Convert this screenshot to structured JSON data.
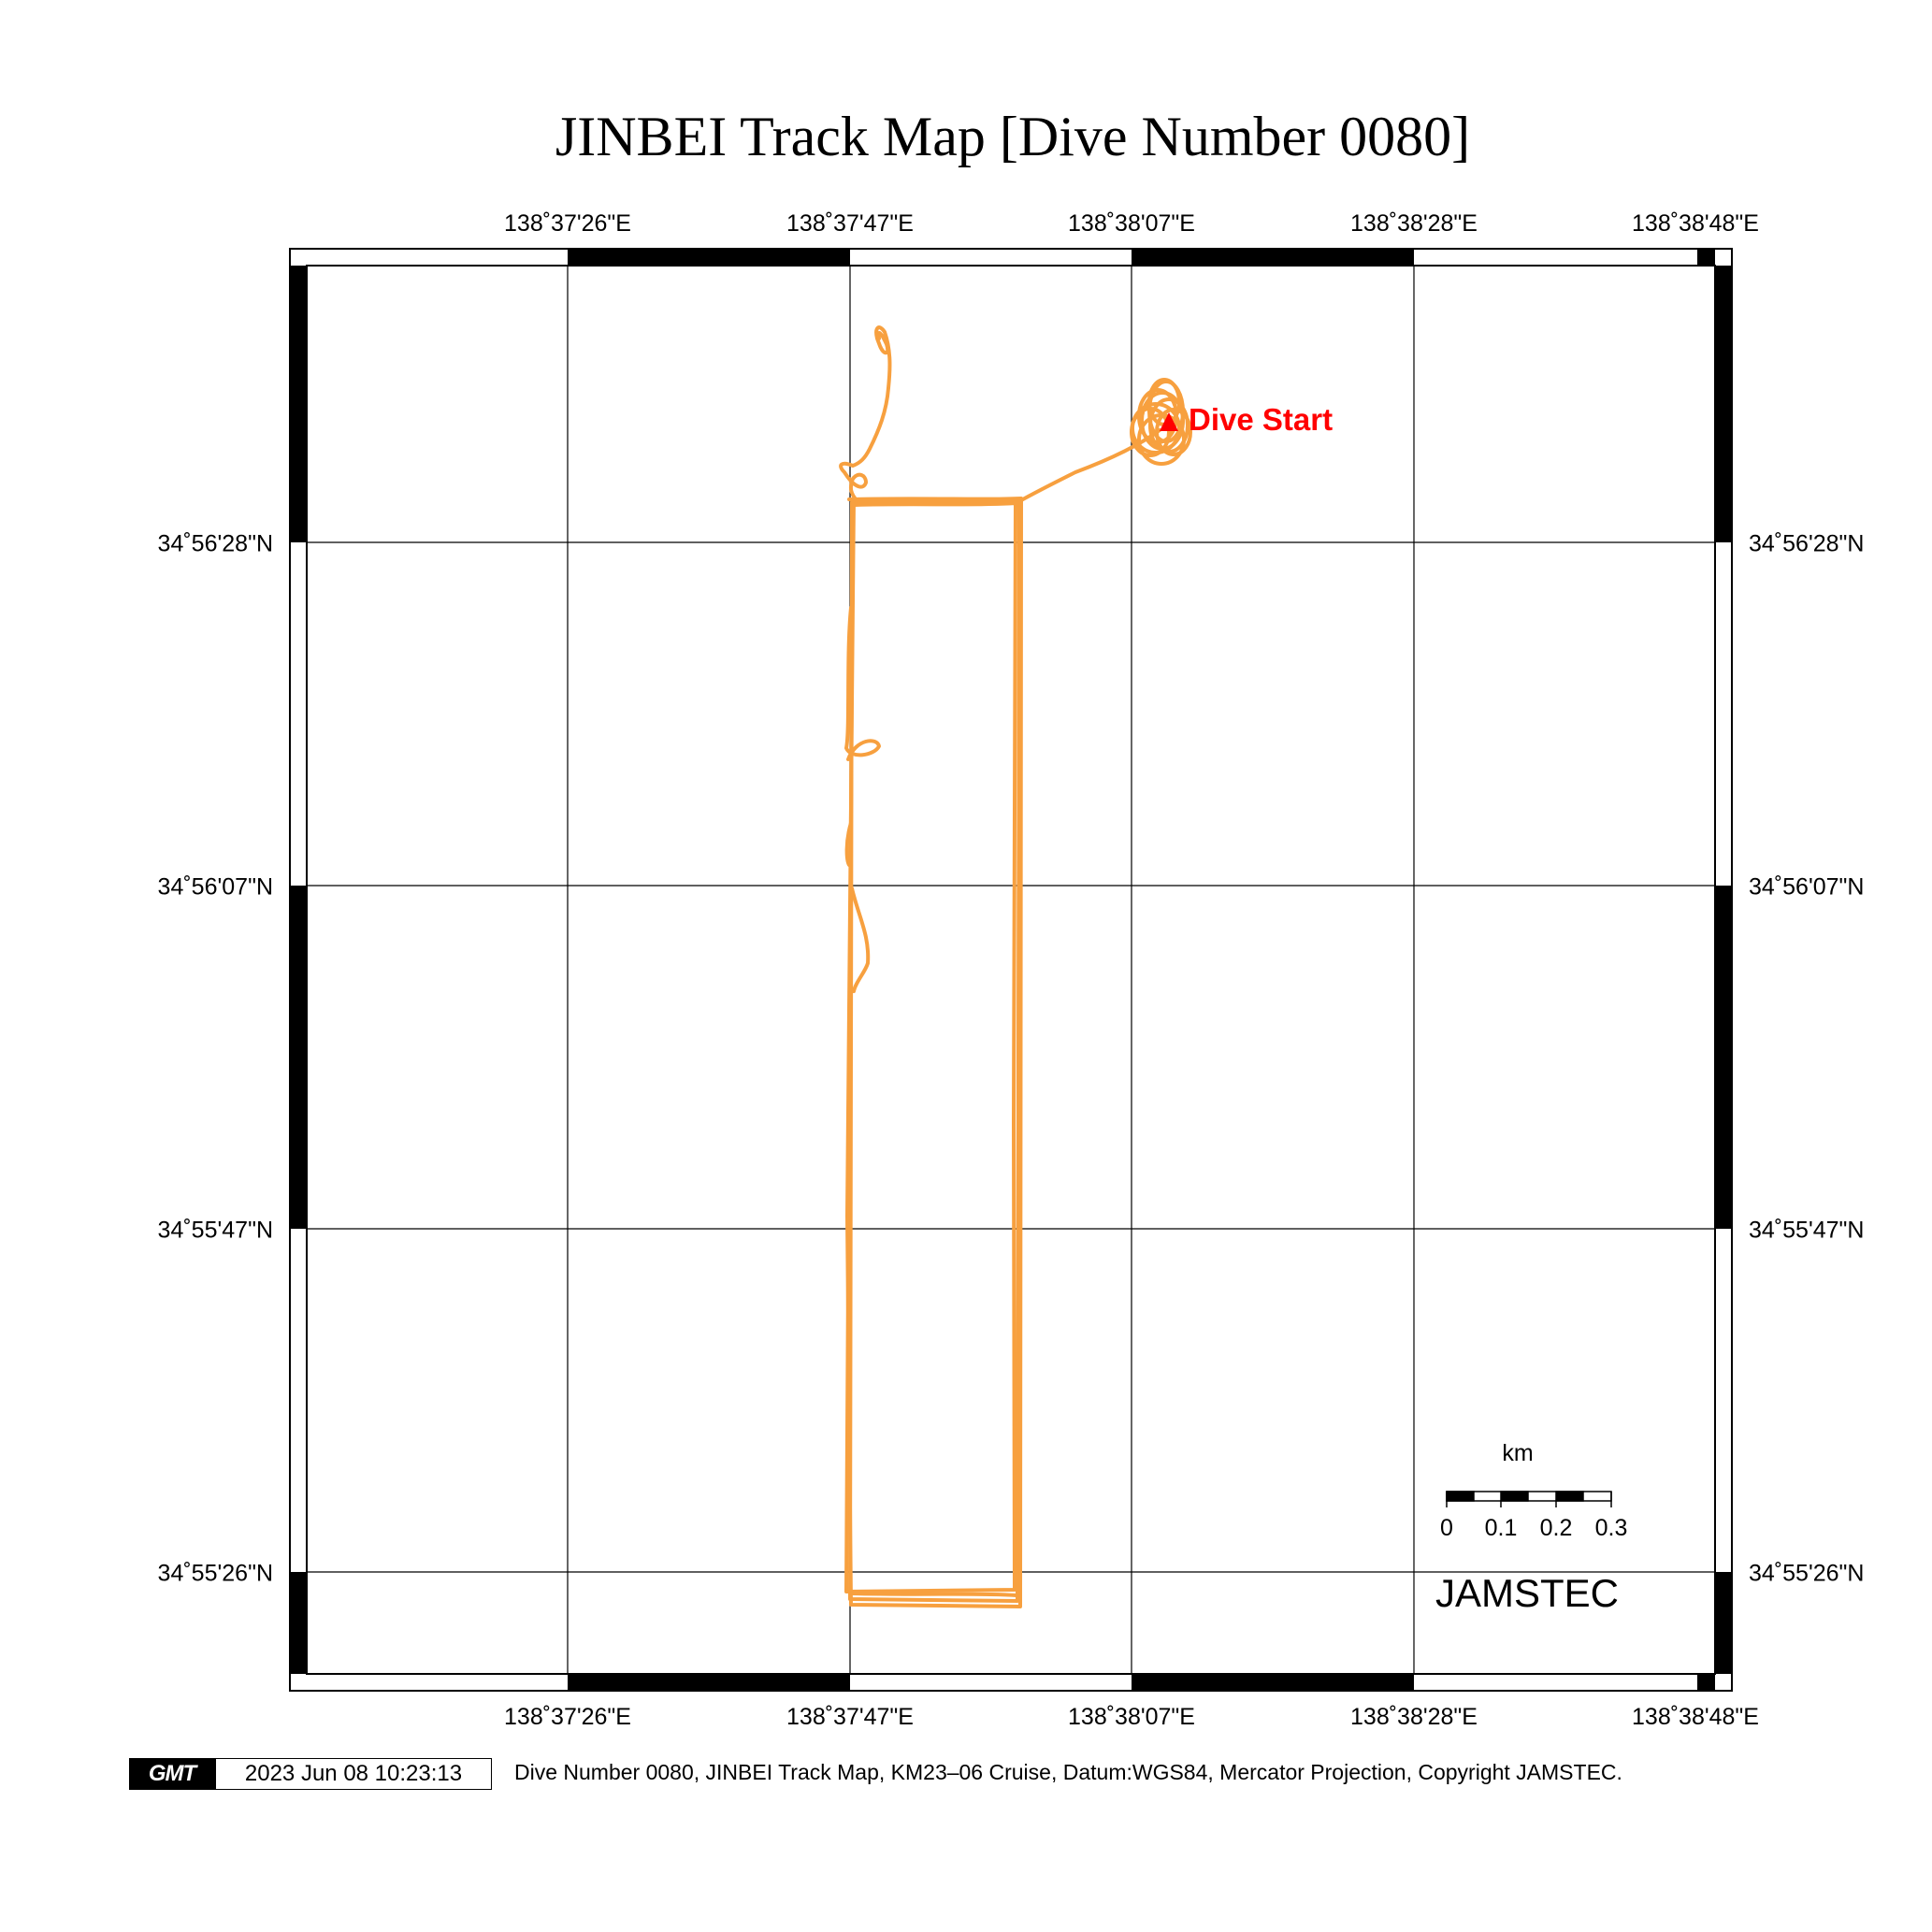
{
  "title": "JINBEI Track Map [Dive Number 0080]",
  "map": {
    "lon_labels": [
      "138˚37'26\"E",
      "138˚37'47\"E",
      "138˚38'07\"E",
      "138˚38'28\"E",
      "138˚38'48\"E"
    ],
    "lat_labels": [
      "34˚56'28\"N",
      "34˚56'07\"N",
      "34˚55'47\"N",
      "34˚55'26\"N"
    ],
    "marker_label": "Dive Start",
    "track_color": "#f7a03f",
    "marker_color": "#ff0000"
  },
  "scale": {
    "unit": "km",
    "ticks": [
      "0",
      "0.1",
      "0.2",
      "0.3"
    ]
  },
  "brand": "JAMSTEC",
  "footer": {
    "logo": "GMT",
    "timestamp": "2023 Jun 08 10:23:13",
    "caption": "Dive Number 0080, JINBEI Track Map, KM23–06 Cruise, Datum:WGS84, Mercator Projection, Copyright JAMSTEC."
  }
}
